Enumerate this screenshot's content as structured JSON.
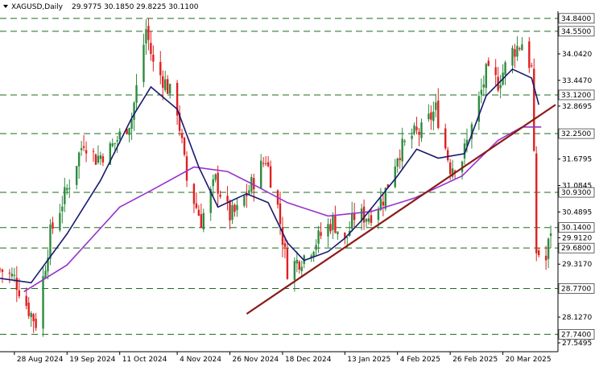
{
  "header": {
    "symbol": "XAGUSD,Daily",
    "ohlc": "29.9775 30.1850 29.8225 30.1100",
    "dropdown_icon": "triangle-down-icon"
  },
  "colors": {
    "background": "#ffffff",
    "bull_candle": "#2e8b3e",
    "bear_candle": "#e02020",
    "ma_fast": "#191970",
    "ma_slow": "#9932cc",
    "trendline": "#8b1a1a",
    "level_line": "#1e6b1e",
    "axis": "#000000"
  },
  "chart_data": {
    "type": "candlestick",
    "instrument": "XAGUSD",
    "timeframe": "Daily",
    "ylim": [
      27.35,
      35.0
    ],
    "y_ticks": [
      "34.0420",
      "33.4470",
      "32.8695",
      "31.6795",
      "31.0845",
      "30.4895",
      "29.9120",
      "29.3170",
      "28.1270",
      "27.5495"
    ],
    "x_ticks": [
      "28 Aug 2024",
      "19 Sep 2024",
      "11 Oct 2024",
      "4 Nov 2024",
      "26 Nov 2024",
      "18 Dec 2024",
      "13 Jan 2025",
      "4 Feb 2025",
      "26 Feb 2025",
      "20 Mar 2025"
    ],
    "horizontal_levels": [
      "34.8400",
      "34.5500",
      "33.1200",
      "32.2500",
      "30.9300",
      "30.1400",
      "29.6800",
      "28.7700",
      "27.7400"
    ],
    "close_path": [
      [
        "2024-08-22",
        29.2
      ],
      [
        "2024-08-28",
        29.0
      ],
      [
        "2024-09-03",
        28.3
      ],
      [
        "2024-09-06",
        28.0
      ],
      [
        "2024-09-12",
        30.0
      ],
      [
        "2024-09-19",
        31.0
      ],
      [
        "2024-09-26",
        32.1
      ],
      [
        "2024-10-01",
        31.7
      ],
      [
        "2024-10-07",
        31.9
      ],
      [
        "2024-10-11",
        32.2
      ],
      [
        "2024-10-16",
        32.6
      ],
      [
        "2024-10-22",
        34.6
      ],
      [
        "2024-10-25",
        33.8
      ],
      [
        "2024-10-30",
        33.4
      ],
      [
        "2024-11-04",
        32.8
      ],
      [
        "2024-11-08",
        31.2
      ],
      [
        "2024-11-14",
        30.3
      ],
      [
        "2024-11-20",
        31.2
      ],
      [
        "2024-11-26",
        30.4
      ],
      [
        "2024-11-29",
        30.5
      ],
      [
        "2024-12-04",
        31.0
      ],
      [
        "2024-12-11",
        31.7
      ],
      [
        "2024-12-16",
        30.6
      ],
      [
        "2024-12-20",
        29.2
      ],
      [
        "2024-12-27",
        29.5
      ],
      [
        "2025-01-02",
        29.9
      ],
      [
        "2025-01-08",
        30.3
      ],
      [
        "2025-01-13",
        29.8
      ],
      [
        "2025-01-17",
        30.4
      ],
      [
        "2025-01-23",
        30.4
      ],
      [
        "2025-01-29",
        30.8
      ],
      [
        "2025-02-04",
        31.8
      ],
      [
        "2025-02-10",
        32.2
      ],
      [
        "2025-02-14",
        32.3
      ],
      [
        "2025-02-20",
        32.8
      ],
      [
        "2025-02-26",
        31.5
      ],
      [
        "2025-03-03",
        31.7
      ],
      [
        "2025-03-07",
        32.4
      ],
      [
        "2025-03-13",
        33.6
      ],
      [
        "2025-03-18",
        33.4
      ],
      [
        "2025-03-24",
        34.1
      ],
      [
        "2025-03-28",
        34.3
      ],
      [
        "2025-04-01",
        33.7
      ],
      [
        "2025-04-03",
        29.6
      ],
      [
        "2025-04-07",
        29.4
      ],
      [
        "2025-04-09",
        30.11
      ]
    ],
    "ma_fast_path": [
      [
        "2024-08-22",
        29.0
      ],
      [
        "2024-09-04",
        28.9
      ],
      [
        "2024-09-19",
        30.0
      ],
      [
        "2024-10-03",
        31.2
      ],
      [
        "2024-10-16",
        32.6
      ],
      [
        "2024-10-24",
        33.3
      ],
      [
        "2024-11-04",
        32.8
      ],
      [
        "2024-11-13",
        31.5
      ],
      [
        "2024-11-21",
        30.6
      ],
      [
        "2024-12-03",
        30.9
      ],
      [
        "2024-12-12",
        30.7
      ],
      [
        "2024-12-20",
        29.8
      ],
      [
        "2024-12-27",
        29.4
      ],
      [
        "2025-01-06",
        29.6
      ],
      [
        "2025-01-13",
        29.9
      ],
      [
        "2025-01-20",
        30.3
      ],
      [
        "2025-02-04",
        31.3
      ],
      [
        "2025-02-12",
        31.9
      ],
      [
        "2025-02-21",
        31.7
      ],
      [
        "2025-03-04",
        31.8
      ],
      [
        "2025-03-13",
        33.1
      ],
      [
        "2025-03-24",
        33.7
      ],
      [
        "2025-04-01",
        33.5
      ],
      [
        "2025-04-04",
        32.9
      ]
    ],
    "ma_slow_path": [
      [
        "2024-09-01",
        28.7
      ],
      [
        "2024-09-19",
        29.3
      ],
      [
        "2024-10-11",
        30.6
      ],
      [
        "2024-10-25",
        31.0
      ],
      [
        "2024-11-11",
        31.5
      ],
      [
        "2024-11-25",
        31.4
      ],
      [
        "2024-12-06",
        31.1
      ],
      [
        "2024-12-20",
        30.7
      ],
      [
        "2025-01-06",
        30.4
      ],
      [
        "2025-01-24",
        30.5
      ],
      [
        "2025-02-11",
        30.8
      ],
      [
        "2025-03-03",
        31.3
      ],
      [
        "2025-03-18",
        32.1
      ],
      [
        "2025-03-28",
        32.4
      ],
      [
        "2025-04-05",
        32.4
      ]
    ],
    "trendline": [
      [
        "2024-12-03",
        28.2
      ],
      [
        "2025-04-11",
        32.9
      ]
    ]
  }
}
